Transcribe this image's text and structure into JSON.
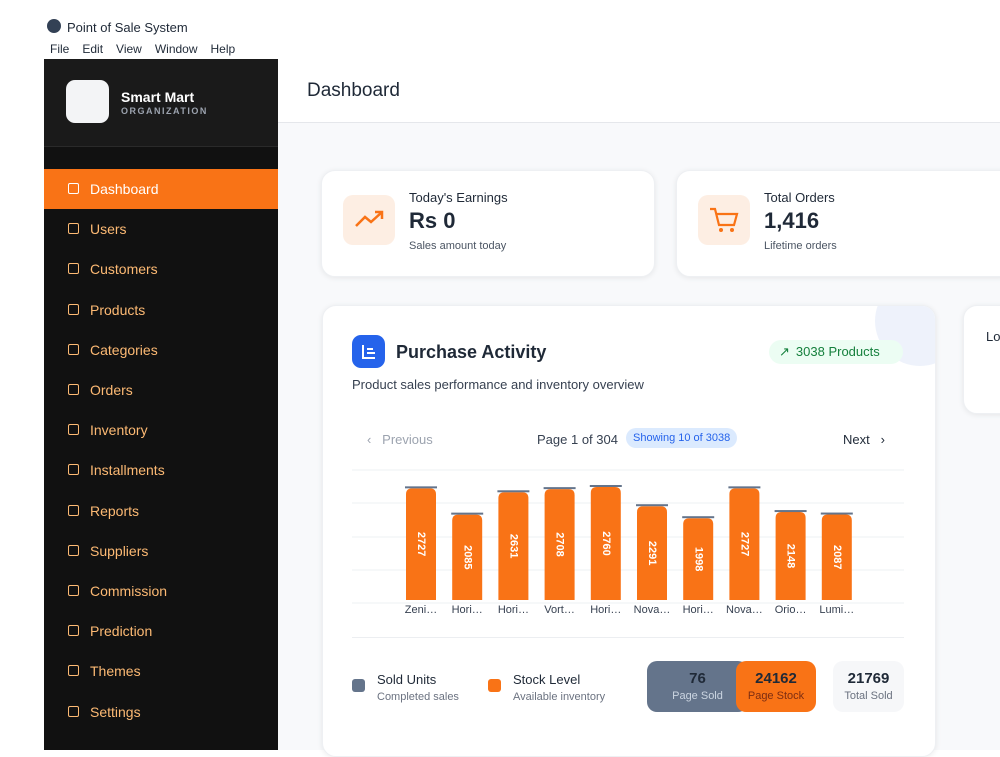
{
  "window": {
    "title": "Point of Sale System",
    "menu": [
      "File",
      "Edit",
      "View",
      "Window",
      "Help"
    ]
  },
  "sidebar": {
    "brand": "Smart Mart",
    "subtitle": "ORGANIZATION",
    "items": [
      "Dashboard",
      "Users",
      "Customers",
      "Products",
      "Categories",
      "Orders",
      "Inventory",
      "Installments",
      "Reports",
      "Suppliers",
      "Commission",
      "Prediction",
      "Themes",
      "Settings"
    ]
  },
  "header": {
    "title": "Dashboard"
  },
  "cards": [
    {
      "label": "Today's Earnings",
      "value": "Rs 0",
      "note": "Sales amount today"
    },
    {
      "label": "Total Orders",
      "value": "1,416",
      "note": "Lifetime orders"
    }
  ],
  "purchase_activity": {
    "title": "Purchase Activity",
    "badge": "3038 Products",
    "subtitle": "Product sales performance and inventory overview",
    "previous": "Previous",
    "page": "Page 1 of 304",
    "showing": "Showing 10 of 3038",
    "next": "Next",
    "chart_data": {
      "type": "bar",
      "categories": [
        "Zeni…",
        "Hori…",
        "Hori…",
        "Vort…",
        "Hori…",
        "Nova…",
        "Hori…",
        "Nova…",
        "Orio…",
        "Lumi…"
      ],
      "values": [
        2727,
        2085,
        2631,
        2708,
        2760,
        2291,
        1998,
        2727,
        2148,
        2087
      ],
      "color": "#f97316"
    },
    "legend": [
      {
        "name": "Sold Units",
        "note": "Completed sales"
      },
      {
        "name": "Stock Level",
        "note": "Available inventory"
      }
    ],
    "stats": [
      {
        "value": 76,
        "label": "Page Sold"
      },
      {
        "value": 24162,
        "label": "Page Stock"
      },
      {
        "value": 21769,
        "label": "Total Sold"
      }
    ]
  },
  "side_panel": {
    "title": "Lo"
  }
}
